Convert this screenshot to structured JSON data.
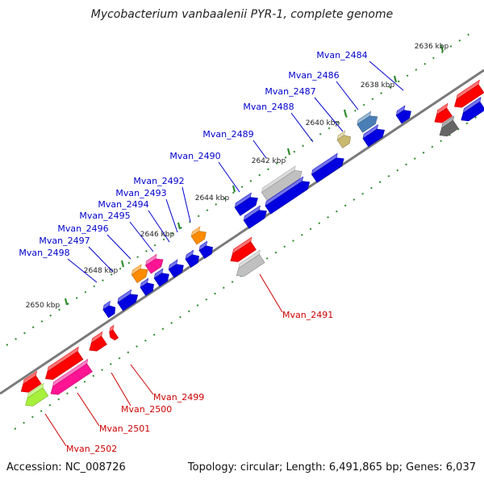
{
  "title": "Mycobacterium vanbaalenii PYR-1, complete genome",
  "footer": {
    "accession": "Accession: NC_008726",
    "topology": "Topology: circular; Length: 6,491,865 bp; Genes: 6,037"
  },
  "colors": {
    "backbone": "#7a7a7a",
    "ruler_dots": "#2e8b2e",
    "forward_label": "#0000cc",
    "reverse_label": "#cc0000",
    "blue": "#0000e0",
    "red": "#ff0000",
    "gray": "#c0c0c0",
    "dark_gray": "#666666",
    "orange": "#ff8c00",
    "pink": "#ff1493",
    "olive": "#c8b870",
    "steel_blue": "#4a7fb5",
    "lime": "#a6f03c"
  },
  "ticks": [
    {
      "label": "2636 kbp"
    },
    {
      "label": "2638 kbp"
    },
    {
      "label": "2640 kbp"
    },
    {
      "label": "2642 kbp"
    },
    {
      "label": "2644 kbp"
    },
    {
      "label": "2646 kbp"
    },
    {
      "label": "2648 kbp"
    },
    {
      "label": "2650 kbp"
    }
  ],
  "forward_labels": [
    {
      "name": "Mvan_2484"
    },
    {
      "name": "Mvan_2486"
    },
    {
      "name": "Mvan_2487"
    },
    {
      "name": "Mvan_2488"
    },
    {
      "name": "Mvan_2489"
    },
    {
      "name": "Mvan_2490"
    },
    {
      "name": "Mvan_2492"
    },
    {
      "name": "Mvan_2493"
    },
    {
      "name": "Mvan_2494"
    },
    {
      "name": "Mvan_2495"
    },
    {
      "name": "Mvan_2496"
    },
    {
      "name": "Mvan_2497"
    },
    {
      "name": "Mvan_2498"
    }
  ],
  "reverse_labels": [
    {
      "name": "Mvan_2491"
    },
    {
      "name": "Mvan_2499"
    },
    {
      "name": "Mvan_2500"
    },
    {
      "name": "Mvan_2501"
    },
    {
      "name": "Mvan_2502"
    }
  ]
}
